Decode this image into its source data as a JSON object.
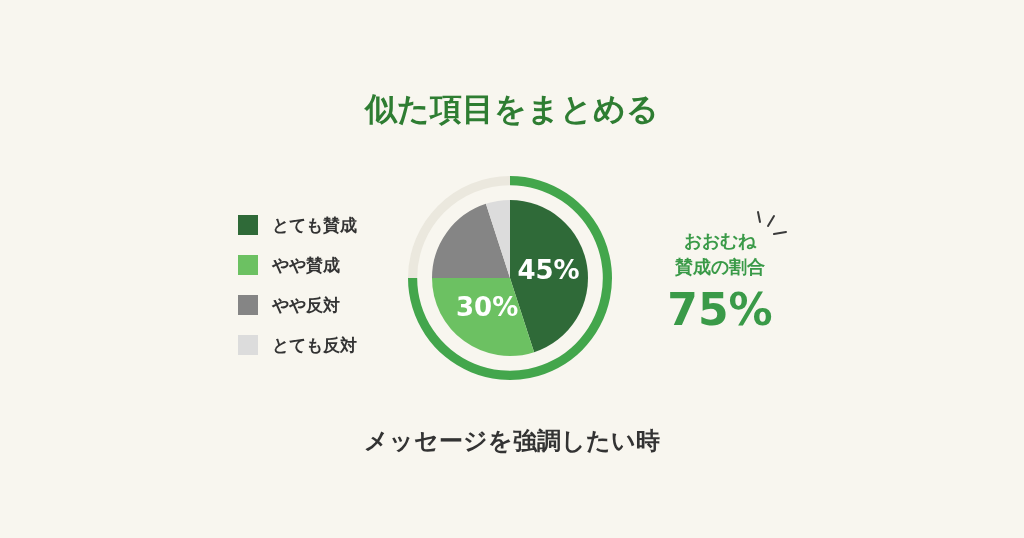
{
  "chart_data": [
    {
      "type": "pie",
      "title": "似た項目をまとめる",
      "categories": [
        "とても賛成",
        "やや賛成",
        "やや反対",
        "とても反対"
      ],
      "values": [
        45,
        30,
        20,
        5
      ],
      "colors": [
        "#2f6a38",
        "#6cc162",
        "#858585",
        "#dcdcdc"
      ],
      "value_labels": [
        "45%",
        "30%",
        null,
        null
      ],
      "legend": "left",
      "annotations": [
        "メッセージを強調したい時"
      ]
    },
    {
      "type": "donut",
      "categories": [
        null,
        null
      ],
      "values": [
        75,
        25
      ],
      "colors": [
        "#43a64c",
        "#ebe8de"
      ],
      "annotations": [
        "おおむね",
        "賛成の割合",
        "75%"
      ]
    }
  ]
}
